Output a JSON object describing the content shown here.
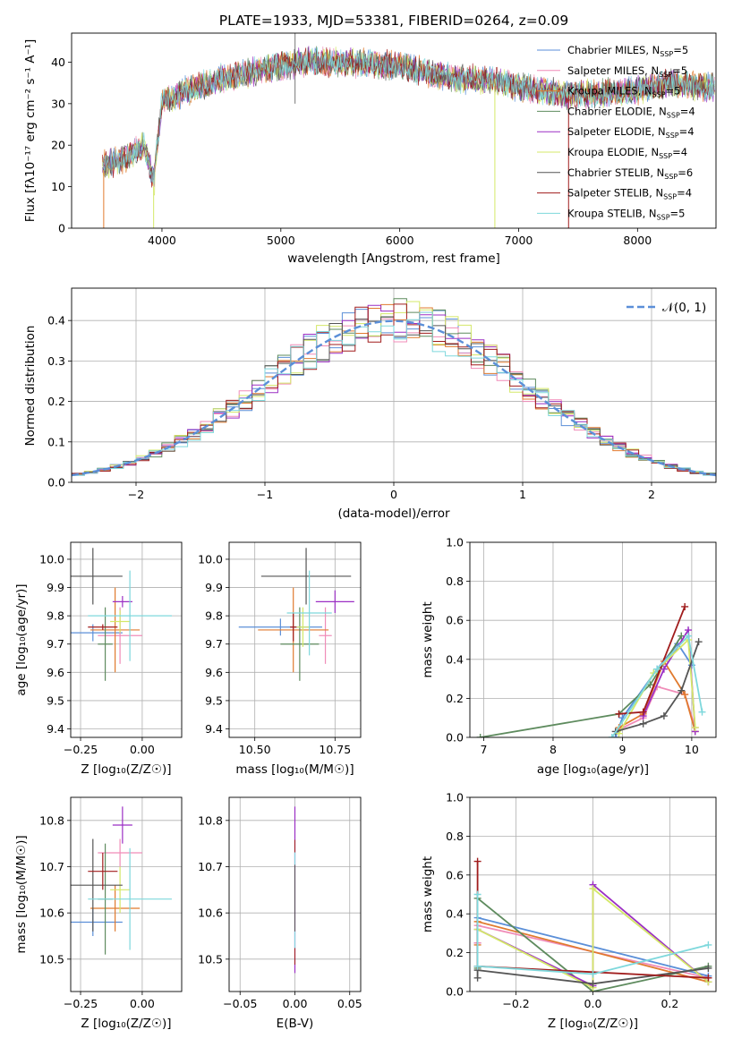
{
  "colors": {
    "chabrier_miles": "#5b8fd8",
    "salpeter_miles": "#f08cb8",
    "kroupa_miles": "#e07a2e",
    "chabrier_elodie": "#5e8b5e",
    "salpeter_elodie": "#9b2fc4",
    "kroupa_elodie": "#d4e868",
    "chabrier_stelib": "#555555",
    "salpeter_stelib": "#a01c1c",
    "kroupa_stelib": "#7ed8dc"
  },
  "chart_data": [
    {
      "type": "line",
      "title": "PLATE=1933, MJD=53381, FIBERID=0264, z=0.09",
      "xlabel": "wavelength [Angstrom, rest frame]",
      "ylabel": "Flux [fλ10⁻¹⁷ erg cm⁻² s⁻¹ A⁻¹]",
      "xlim": [
        3240,
        8660
      ],
      "ylim": [
        0,
        47
      ],
      "xticks": [
        "4000",
        "5000",
        "6000",
        "7000",
        "8000"
      ],
      "yticks": [
        "0",
        "10",
        "20",
        "30",
        "40"
      ],
      "legend": [
        {
          "label": "Chabrier MILES, N",
          "sub": "SSP",
          "eq": "=5"
        },
        {
          "label": "Salpeter MILES, N",
          "sub": "SSP",
          "eq": "=5"
        },
        {
          "label": "Kroupa MILES, N",
          "sub": "SSP",
          "eq": "=5"
        },
        {
          "label": "Chabrier ELODIE, N",
          "sub": "SSP",
          "eq": "=4"
        },
        {
          "label": "Salpeter ELODIE, N",
          "sub": "SSP",
          "eq": "=4"
        },
        {
          "label": "Kroupa ELODIE, N",
          "sub": "SSP",
          "eq": "=4"
        },
        {
          "label": "Chabrier STELIB, N",
          "sub": "SSP",
          "eq": "=6"
        },
        {
          "label": "Salpeter STELIB, N",
          "sub": "SSP",
          "eq": "=4"
        },
        {
          "label": "Kroupa STELIB, N",
          "sub": "SSP",
          "eq": "=5"
        }
      ],
      "legend_position": "upper right",
      "continuum_x": [
        3500,
        3700,
        3850,
        3930,
        4000,
        4200,
        4500,
        4800,
        5200,
        5600,
        6000,
        6300,
        6500,
        6700,
        7000,
        7200,
        7500,
        8000,
        8300,
        8600
      ],
      "continuum_y": [
        15,
        17,
        20,
        12,
        30,
        33,
        36,
        38,
        40,
        40,
        39,
        37,
        36,
        36,
        34,
        33,
        32,
        33,
        35,
        34
      ]
    },
    {
      "type": "line",
      "xlabel": "(data-model)/error",
      "ylabel": "Normed distribution",
      "xlim": [
        -2.5,
        2.5
      ],
      "ylim": [
        0,
        0.48
      ],
      "xticks": [
        "−2",
        "−1",
        "0",
        "1",
        "2"
      ],
      "yticks": [
        "0.0",
        "0.1",
        "0.2",
        "0.3",
        "0.4"
      ],
      "grid": true,
      "legend": [
        {
          "label": "𝒩(0, 1)"
        }
      ],
      "legend_position": "upper right",
      "series": [
        {
          "name": "𝒩(0, 1)",
          "type": "gaussian",
          "mean": 0,
          "sigma": 1
        }
      ],
      "histogram_bin_width": 0.1,
      "histogram_series_count": 9
    },
    {
      "type": "scatter",
      "xlabel": "Z [log₁₀(Z/Z☉)]",
      "ylabel": "age  [log₁₀(age/yr)]",
      "xlim": [
        -0.29,
        0.16
      ],
      "ylim": [
        9.37,
        10.06
      ],
      "xticks": [
        "−0.25",
        "0.00"
      ],
      "yticks": [
        "9.4",
        "9.5",
        "9.6",
        "9.7",
        "9.8",
        "9.9",
        "10.0"
      ],
      "grid": true,
      "errorbars": [
        {
          "x": -0.2,
          "xerr": 0.12,
          "y": 9.74,
          "yerr": 0.03
        },
        {
          "x": -0.09,
          "xerr": 0.09,
          "y": 9.73,
          "yerr": 0.1
        },
        {
          "x": -0.11,
          "xerr": 0.1,
          "y": 9.75,
          "yerr": 0.15
        },
        {
          "x": -0.15,
          "xerr": 0.03,
          "y": 9.7,
          "yerr": 0.13
        },
        {
          "x": -0.08,
          "xerr": 0.04,
          "y": 9.85,
          "yerr": 0.02
        },
        {
          "x": -0.09,
          "xerr": 0.04,
          "y": 9.78,
          "yerr": 0.04
        },
        {
          "x": -0.2,
          "xerr": 0.12,
          "y": 9.94,
          "yerr": 0.1
        },
        {
          "x": -0.16,
          "xerr": 0.06,
          "y": 9.76,
          "yerr": 0.01
        },
        {
          "x": -0.05,
          "xerr": 0.17,
          "y": 9.8,
          "yerr": 0.16
        }
      ]
    },
    {
      "type": "scatter",
      "xlabel": "mass [log₁₀(M/M☉)]",
      "ylabel": "",
      "xlim": [
        10.42,
        10.83
      ],
      "ylim": [
        9.37,
        10.06
      ],
      "xticks": [
        "10.50",
        "10.75"
      ],
      "yticks": [
        "9.4",
        "9.5",
        "9.6",
        "9.7",
        "9.8",
        "9.9",
        "10.0"
      ],
      "grid": true,
      "errorbars": [
        {
          "x": 10.58,
          "xerr": 0.13,
          "y": 9.76,
          "yerr": 0.03
        },
        {
          "x": 10.72,
          "xerr": 0.02,
          "y": 9.73,
          "yerr": 0.1
        },
        {
          "x": 10.62,
          "xerr": 0.11,
          "y": 9.75,
          "yerr": 0.15
        },
        {
          "x": 10.64,
          "xerr": 0.06,
          "y": 9.7,
          "yerr": 0.13
        },
        {
          "x": 10.75,
          "xerr": 0.06,
          "y": 9.85,
          "yerr": 0.04
        },
        {
          "x": 10.65,
          "xerr": 0.02,
          "y": 9.76,
          "yerr": 0.07
        },
        {
          "x": 10.66,
          "xerr": 0.14,
          "y": 9.94,
          "yerr": 0.1
        },
        {
          "x": 10.62,
          "xerr": 0.01,
          "y": 9.76,
          "yerr": 0.05
        },
        {
          "x": 10.67,
          "xerr": 0.07,
          "y": 9.81,
          "yerr": 0.15
        }
      ]
    },
    {
      "type": "line",
      "xlabel": "age  [log₁₀(age/yr)]",
      "ylabel": "mass weight",
      "xlim": [
        6.8,
        10.35
      ],
      "ylim": [
        0,
        1
      ],
      "xticks": [
        "7",
        "8",
        "9",
        "10"
      ],
      "yticks": [
        "0.0",
        "0.2",
        "0.4",
        "0.6",
        "0.8",
        "1.0"
      ],
      "grid": true,
      "series": [
        {
          "x": [
            8.9,
            9.0,
            9.5,
            9.8,
            10.0
          ],
          "y": [
            0.0,
            0.1,
            0.35,
            0.48,
            0.37
          ]
        },
        {
          "x": [
            8.95,
            9.3,
            9.5,
            9.9,
            10.05
          ],
          "y": [
            0.04,
            0.1,
            0.26,
            0.22,
            0.05
          ]
        },
        {
          "x": [
            8.95,
            9.3,
            9.6,
            9.9,
            10.05
          ],
          "y": [
            0.05,
            0.12,
            0.39,
            0.22,
            0.03
          ]
        },
        {
          "x": [
            6.95,
            8.95,
            9.4,
            9.85
          ],
          "y": [
            0.0,
            0.12,
            0.27,
            0.52
          ]
        },
        {
          "x": [
            9.3,
            9.6,
            9.95,
            10.05
          ],
          "y": [
            0.11,
            0.35,
            0.55,
            0.03
          ]
        },
        {
          "x": [
            8.95,
            9.45,
            9.95,
            10.05
          ],
          "y": [
            0.02,
            0.33,
            0.5,
            0.05
          ]
        },
        {
          "x": [
            8.9,
            9.3,
            9.6,
            9.85,
            10.1
          ],
          "y": [
            0.03,
            0.07,
            0.11,
            0.24,
            0.49
          ]
        },
        {
          "x": [
            8.95,
            9.3,
            9.9
          ],
          "y": [
            0.12,
            0.13,
            0.67
          ]
        },
        {
          "x": [
            8.85,
            9.5,
            9.95,
            10.15
          ],
          "y": [
            0.0,
            0.35,
            0.52,
            0.13
          ]
        }
      ]
    },
    {
      "type": "scatter",
      "xlabel": "Z [log₁₀(Z/Z☉)]",
      "ylabel": "mass [log₁₀(M/M☉)]",
      "xlim": [
        -0.29,
        0.16
      ],
      "ylim": [
        10.43,
        10.85
      ],
      "xticks": [
        "−0.25",
        "0.00"
      ],
      "yticks": [
        "10.5",
        "10.6",
        "10.7",
        "10.8"
      ],
      "grid": true,
      "errorbars": [
        {
          "x": -0.2,
          "xerr": 0.12,
          "y": 10.58,
          "yerr": 0.03
        },
        {
          "x": -0.09,
          "xerr": 0.09,
          "y": 10.73,
          "yerr": 0.03
        },
        {
          "x": -0.11,
          "xerr": 0.1,
          "y": 10.61,
          "yerr": 0.05
        },
        {
          "x": -0.15,
          "xerr": 0.03,
          "y": 10.63,
          "yerr": 0.12
        },
        {
          "x": -0.08,
          "xerr": 0.04,
          "y": 10.79,
          "yerr": 0.04
        },
        {
          "x": -0.09,
          "xerr": 0.04,
          "y": 10.65,
          "yerr": 0.05
        },
        {
          "x": -0.2,
          "xerr": 0.12,
          "y": 10.66,
          "yerr": 0.1
        },
        {
          "x": -0.16,
          "xerr": 0.06,
          "y": 10.69,
          "yerr": 0.04
        },
        {
          "x": -0.05,
          "xerr": 0.17,
          "y": 10.63,
          "yerr": 0.11
        }
      ]
    },
    {
      "type": "scatter",
      "xlabel": "E(B-V)",
      "ylabel": "",
      "xlim": [
        -0.06,
        0.06
      ],
      "ylim": [
        10.43,
        10.85
      ],
      "xticks": [
        "−0.05",
        "0.00",
        "0.05"
      ],
      "yticks": [
        "10.5",
        "10.6",
        "10.7",
        "10.8"
      ],
      "grid": true,
      "errorbars": [
        {
          "x": 0.0,
          "xerr": 0.0,
          "y": 10.65,
          "yerr": 0.18
        }
      ]
    },
    {
      "type": "line",
      "xlabel": "Z [log₁₀(Z/Z☉)]",
      "ylabel": "mass weight",
      "xlim": [
        -0.32,
        0.32
      ],
      "ylim": [
        0,
        1
      ],
      "xticks": [
        "−0.2",
        "0.0",
        "0.2"
      ],
      "yticks": [
        "0.0",
        "0.2",
        "0.4",
        "0.6",
        "0.8",
        "1.0"
      ],
      "grid": true,
      "series": [
        {
          "x": [
            -0.3,
            -0.3,
            0.3
          ],
          "y": [
            0.25,
            0.38,
            0.08
          ]
        },
        {
          "x": [
            -0.3,
            -0.3,
            0.3
          ],
          "y": [
            0.25,
            0.34,
            0.07
          ]
        },
        {
          "x": [
            -0.3,
            -0.3,
            0.3
          ],
          "y": [
            0.24,
            0.36,
            0.05
          ]
        },
        {
          "x": [
            -0.3,
            -0.3,
            0.0,
            0.3
          ],
          "y": [
            0.12,
            0.48,
            0.0,
            0.13
          ]
        },
        {
          "x": [
            -0.3,
            0.0,
            0.0,
            0.3
          ],
          "y": [
            0.32,
            0.03,
            0.55,
            0.05
          ]
        },
        {
          "x": [
            -0.3,
            0.0,
            0.0,
            0.3
          ],
          "y": [
            0.32,
            0.02,
            0.53,
            0.05
          ]
        },
        {
          "x": [
            -0.3,
            -0.3,
            0.0,
            0.3
          ],
          "y": [
            0.07,
            0.11,
            0.04,
            0.12
          ]
        },
        {
          "x": [
            -0.3,
            -0.3,
            0.3
          ],
          "y": [
            0.67,
            0.13,
            0.07
          ]
        },
        {
          "x": [
            -0.3,
            -0.3,
            0.0,
            0.3
          ],
          "y": [
            0.5,
            0.13,
            0.09,
            0.24
          ]
        }
      ]
    }
  ]
}
